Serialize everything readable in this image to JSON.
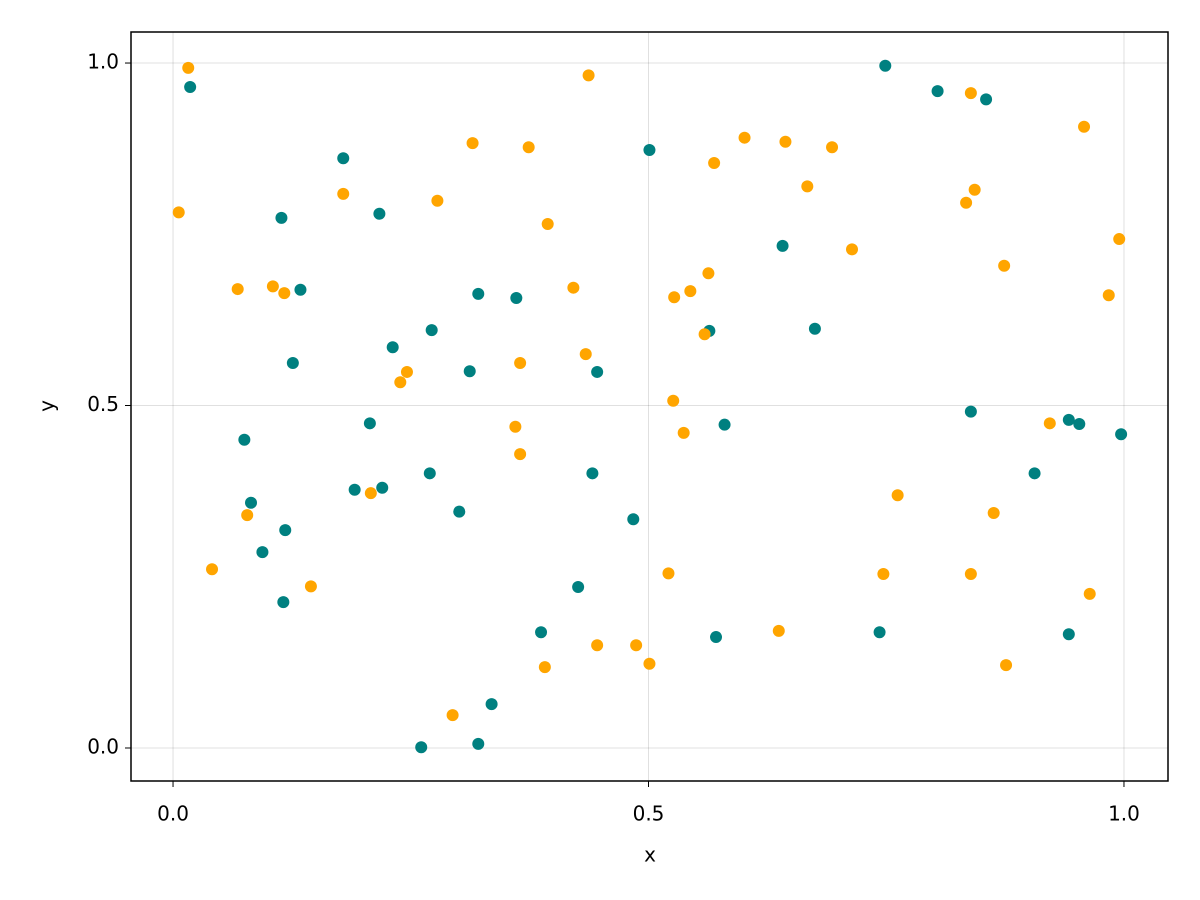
{
  "chart_data": {
    "type": "scatter",
    "x_label": "x",
    "y_label": "y",
    "xlim": [
      -0.0442,
      1.0463
    ],
    "ylim": [
      -0.0482,
      1.0453
    ],
    "xticks": [
      {
        "value": 0,
        "label": "0.0"
      },
      0.5,
      {
        "value": 1,
        "label": "1.0"
      }
    ],
    "yticks": [
      {
        "value": 0,
        "label": "0.0"
      },
      0.5,
      {
        "value": 1,
        "label": "1.0"
      }
    ],
    "grid": true,
    "series": [
      {
        "color": "#008080",
        "x": [
          0.018,
          0.179,
          0.114,
          0.217,
          0.134,
          0.126,
          0.075,
          0.082,
          0.118,
          0.094,
          0.116,
          0.231,
          0.272,
          0.207,
          0.191,
          0.22,
          0.27,
          0.301,
          0.312,
          0.321,
          0.361,
          0.321,
          0.335,
          0.261,
          0.387,
          0.426,
          0.441,
          0.446,
          0.484,
          0.501,
          0.564,
          0.58,
          0.571,
          0.641,
          0.675,
          0.749,
          0.804,
          0.855,
          0.839,
          0.743,
          0.906,
          0.942,
          0.953,
          0.997,
          0.942
        ],
        "values": [
          0.965,
          0.861,
          0.774,
          0.78,
          0.669,
          0.562,
          0.45,
          0.358,
          0.318,
          0.286,
          0.213,
          0.585,
          0.61,
          0.474,
          0.377,
          0.38,
          0.401,
          0.345,
          0.55,
          0.663,
          0.657,
          0.006,
          0.064,
          0.001,
          0.169,
          0.235,
          0.401,
          0.549,
          0.334,
          0.873,
          0.609,
          0.472,
          0.162,
          0.733,
          0.612,
          0.996,
          0.959,
          0.947,
          0.491,
          0.169,
          0.401,
          0.479,
          0.473,
          0.458,
          0.166
        ]
      },
      {
        "color": "#ffa500",
        "x": [
          0.006,
          0.016,
          0.068,
          0.105,
          0.117,
          0.078,
          0.041,
          0.145,
          0.179,
          0.208,
          0.239,
          0.246,
          0.278,
          0.315,
          0.374,
          0.394,
          0.365,
          0.36,
          0.365,
          0.294,
          0.391,
          0.421,
          0.434,
          0.437,
          0.446,
          0.487,
          0.501,
          0.521,
          0.526,
          0.527,
          0.537,
          0.544,
          0.563,
          0.559,
          0.569,
          0.601,
          0.644,
          0.667,
          0.693,
          0.714,
          0.637,
          0.747,
          0.762,
          0.834,
          0.843,
          0.839,
          0.839,
          0.863,
          0.874,
          0.876,
          0.922,
          0.958,
          0.964,
          0.984,
          0.995
        ],
        "values": [
          0.782,
          0.993,
          0.67,
          0.674,
          0.664,
          0.34,
          0.261,
          0.236,
          0.809,
          0.372,
          0.534,
          0.549,
          0.799,
          0.883,
          0.877,
          0.765,
          0.562,
          0.469,
          0.429,
          0.048,
          0.118,
          0.672,
          0.575,
          0.982,
          0.15,
          0.15,
          0.123,
          0.255,
          0.507,
          0.658,
          0.46,
          0.667,
          0.693,
          0.604,
          0.854,
          0.891,
          0.885,
          0.82,
          0.877,
          0.728,
          0.171,
          0.254,
          0.369,
          0.796,
          0.815,
          0.956,
          0.254,
          0.343,
          0.704,
          0.121,
          0.474,
          0.907,
          0.225,
          0.661,
          0.743
        ]
      }
    ]
  }
}
